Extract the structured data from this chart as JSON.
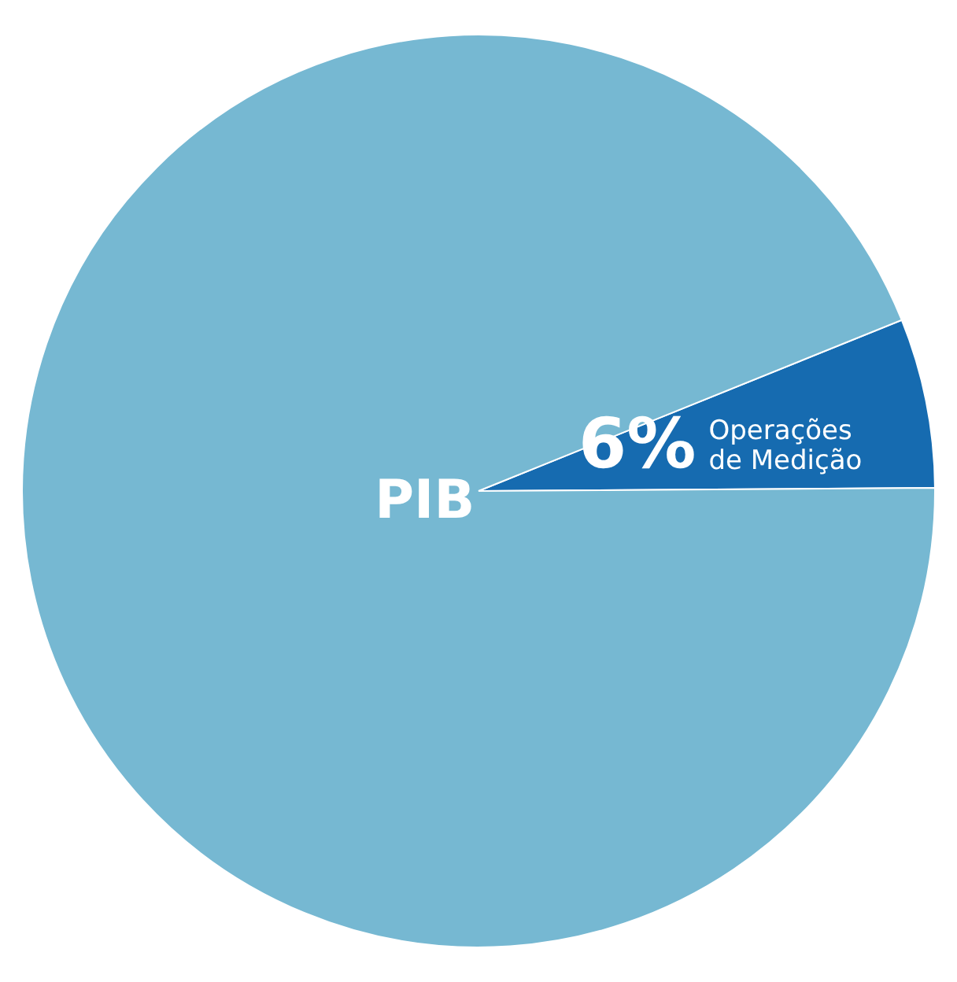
{
  "chart_data": {
    "type": "pie",
    "categories": [
      "Operações de Medição",
      "PIB"
    ],
    "values": [
      6,
      94
    ],
    "colors": [
      "#166bb0",
      "#76b8d2"
    ],
    "value_labels": [
      "6%",
      null
    ]
  }
}
